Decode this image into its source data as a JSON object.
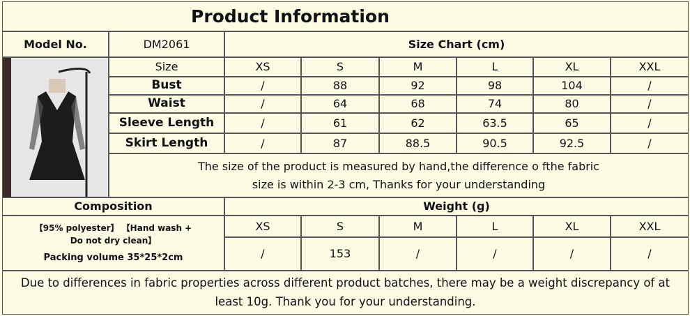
{
  "header": {
    "title": "Product Information"
  },
  "model": {
    "label": "Model No.",
    "value": "DM2061"
  },
  "size_chart": {
    "title": "Size Chart (cm)",
    "size_label": "Size",
    "sizes": [
      "XS",
      "S",
      "M",
      "L",
      "XL",
      "XXL"
    ],
    "rows": [
      {
        "label": "Bust",
        "values": [
          "/",
          "88",
          "92",
          "98",
          "104",
          "/"
        ]
      },
      {
        "label": "Waist",
        "values": [
          "/",
          "64",
          "68",
          "74",
          "80",
          "/"
        ]
      },
      {
        "label": "Sleeve Length",
        "values": [
          "/",
          "61",
          "62",
          "63.5",
          "65",
          "/"
        ]
      },
      {
        "label": "Skirt Length",
        "values": [
          "/",
          "87",
          "88.5",
          "90.5",
          "92.5",
          "/"
        ]
      }
    ],
    "note": [
      "The size of the product is measured by hand,the difference o fthe fabric",
      "size is within 2-3 cm, Thanks for your understanding"
    ]
  },
  "composition": {
    "title": "Composition",
    "material": "【95% polyester】 【Hand wash + Do not dry clean】",
    "packing": "Packing volume 35*25*2cm"
  },
  "weight": {
    "title": "Weight (g)",
    "sizes": [
      "XS",
      "S",
      "M",
      "L",
      "XL",
      "XXL"
    ],
    "values": [
      "/",
      "153",
      "/",
      "/",
      "/",
      "/"
    ]
  },
  "footer": {
    "note": "Due to differences in fabric properties across different product batches, there may be a weight discrepancy of at least 10g. Thank you for your understanding."
  }
}
